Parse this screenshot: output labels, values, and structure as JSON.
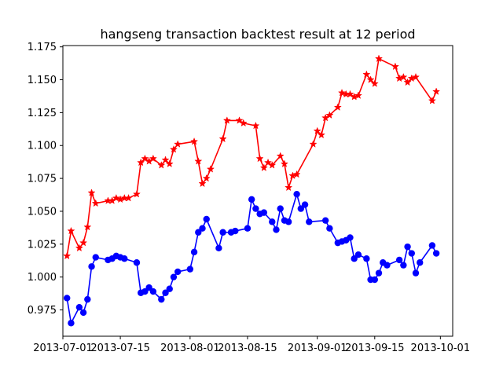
{
  "chart_data": {
    "type": "line",
    "title": "hangseng transaction backtest result at 12 period",
    "xlabel": "",
    "ylabel": "",
    "xlim": [
      "2013-07-01",
      "2013-10-04"
    ],
    "ylim": [
      0.955,
      1.176
    ],
    "grid": false,
    "x_ticks": [
      "2013-07-01",
      "2013-07-15",
      "2013-08-01",
      "2013-08-15",
      "2013-09-01",
      "2013-09-15",
      "2013-10-01"
    ],
    "y_ticks": [
      "0.975",
      "1.000",
      "1.025",
      "1.050",
      "1.075",
      "1.100",
      "1.125",
      "1.150",
      "1.175"
    ],
    "series": [
      {
        "color": "#ff0000",
        "marker": "star",
        "x": [
          "2013-07-02",
          "2013-07-03",
          "2013-07-05",
          "2013-07-06",
          "2013-07-07",
          "2013-07-08",
          "2013-07-09",
          "2013-07-12",
          "2013-07-13",
          "2013-07-14",
          "2013-07-15",
          "2013-07-16",
          "2013-07-17",
          "2013-07-19",
          "2013-07-20",
          "2013-07-21",
          "2013-07-22",
          "2013-07-23",
          "2013-07-25",
          "2013-07-26",
          "2013-07-27",
          "2013-07-28",
          "2013-07-29",
          "2013-08-02",
          "2013-08-03",
          "2013-08-04",
          "2013-08-05",
          "2013-08-06",
          "2013-08-09",
          "2013-08-10",
          "2013-08-13",
          "2013-08-14",
          "2013-08-17",
          "2013-08-18",
          "2013-08-19",
          "2013-08-20",
          "2013-08-21",
          "2013-08-23",
          "2013-08-24",
          "2013-08-25",
          "2013-08-26",
          "2013-08-27",
          "2013-08-31",
          "2013-09-01",
          "2013-09-02",
          "2013-09-03",
          "2013-09-04",
          "2013-09-06",
          "2013-09-07",
          "2013-09-08",
          "2013-09-09",
          "2013-09-10",
          "2013-09-11",
          "2013-09-13",
          "2013-09-14",
          "2013-09-15",
          "2013-09-16",
          "2013-09-20",
          "2013-09-21",
          "2013-09-22",
          "2013-09-23",
          "2013-09-24",
          "2013-09-25",
          "2013-09-29",
          "2013-09-30"
        ],
        "values": [
          1.016,
          1.035,
          1.022,
          1.026,
          1.038,
          1.064,
          1.056,
          1.058,
          1.058,
          1.06,
          1.059,
          1.06,
          1.06,
          1.063,
          1.087,
          1.09,
          1.088,
          1.09,
          1.085,
          1.089,
          1.086,
          1.097,
          1.101,
          1.103,
          1.088,
          1.071,
          1.075,
          1.082,
          1.105,
          1.119,
          1.119,
          1.117,
          1.115,
          1.09,
          1.083,
          1.087,
          1.085,
          1.092,
          1.086,
          1.068,
          1.077,
          1.078,
          1.101,
          1.111,
          1.108,
          1.121,
          1.123,
          1.129,
          1.14,
          1.139,
          1.139,
          1.137,
          1.138,
          1.154,
          1.15,
          1.147,
          1.166,
          1.16,
          1.151,
          1.152,
          1.148,
          1.151,
          1.152,
          1.134,
          1.141
        ]
      },
      {
        "color": "#0000ff",
        "marker": "circle",
        "x": [
          "2013-07-02",
          "2013-07-03",
          "2013-07-05",
          "2013-07-06",
          "2013-07-07",
          "2013-07-08",
          "2013-07-09",
          "2013-07-12",
          "2013-07-13",
          "2013-07-14",
          "2013-07-15",
          "2013-07-16",
          "2013-07-19",
          "2013-07-20",
          "2013-07-21",
          "2013-07-22",
          "2013-07-23",
          "2013-07-25",
          "2013-07-26",
          "2013-07-27",
          "2013-07-28",
          "2013-07-29",
          "2013-08-01",
          "2013-08-02",
          "2013-08-03",
          "2013-08-04",
          "2013-08-05",
          "2013-08-08",
          "2013-08-09",
          "2013-08-11",
          "2013-08-12",
          "2013-08-15",
          "2013-08-16",
          "2013-08-17",
          "2013-08-18",
          "2013-08-19",
          "2013-08-21",
          "2013-08-22",
          "2013-08-23",
          "2013-08-24",
          "2013-08-25",
          "2013-08-27",
          "2013-08-28",
          "2013-08-29",
          "2013-08-30",
          "2013-09-03",
          "2013-09-04",
          "2013-09-06",
          "2013-09-07",
          "2013-09-08",
          "2013-09-09",
          "2013-09-10",
          "2013-09-11",
          "2013-09-13",
          "2013-09-14",
          "2013-09-15",
          "2013-09-16",
          "2013-09-17",
          "2013-09-18",
          "2013-09-21",
          "2013-09-22",
          "2013-09-23",
          "2013-09-24",
          "2013-09-25",
          "2013-09-26",
          "2013-09-29",
          "2013-09-30"
        ],
        "values": [
          0.984,
          0.965,
          0.977,
          0.973,
          0.983,
          1.008,
          1.015,
          1.013,
          1.014,
          1.016,
          1.015,
          1.014,
          1.011,
          0.988,
          0.989,
          0.992,
          0.989,
          0.983,
          0.988,
          0.991,
          1.0,
          1.004,
          1.006,
          1.019,
          1.034,
          1.037,
          1.044,
          1.022,
          1.034,
          1.034,
          1.035,
          1.037,
          1.059,
          1.052,
          1.048,
          1.049,
          1.042,
          1.036,
          1.052,
          1.043,
          1.042,
          1.063,
          1.052,
          1.055,
          1.042,
          1.043,
          1.037,
          1.026,
          1.027,
          1.028,
          1.03,
          1.014,
          1.017,
          1.014,
          0.998,
          0.998,
          1.003,
          1.011,
          1.009,
          1.013,
          1.009,
          1.023,
          1.018,
          1.003,
          1.011,
          1.024,
          1.018
        ]
      }
    ]
  }
}
